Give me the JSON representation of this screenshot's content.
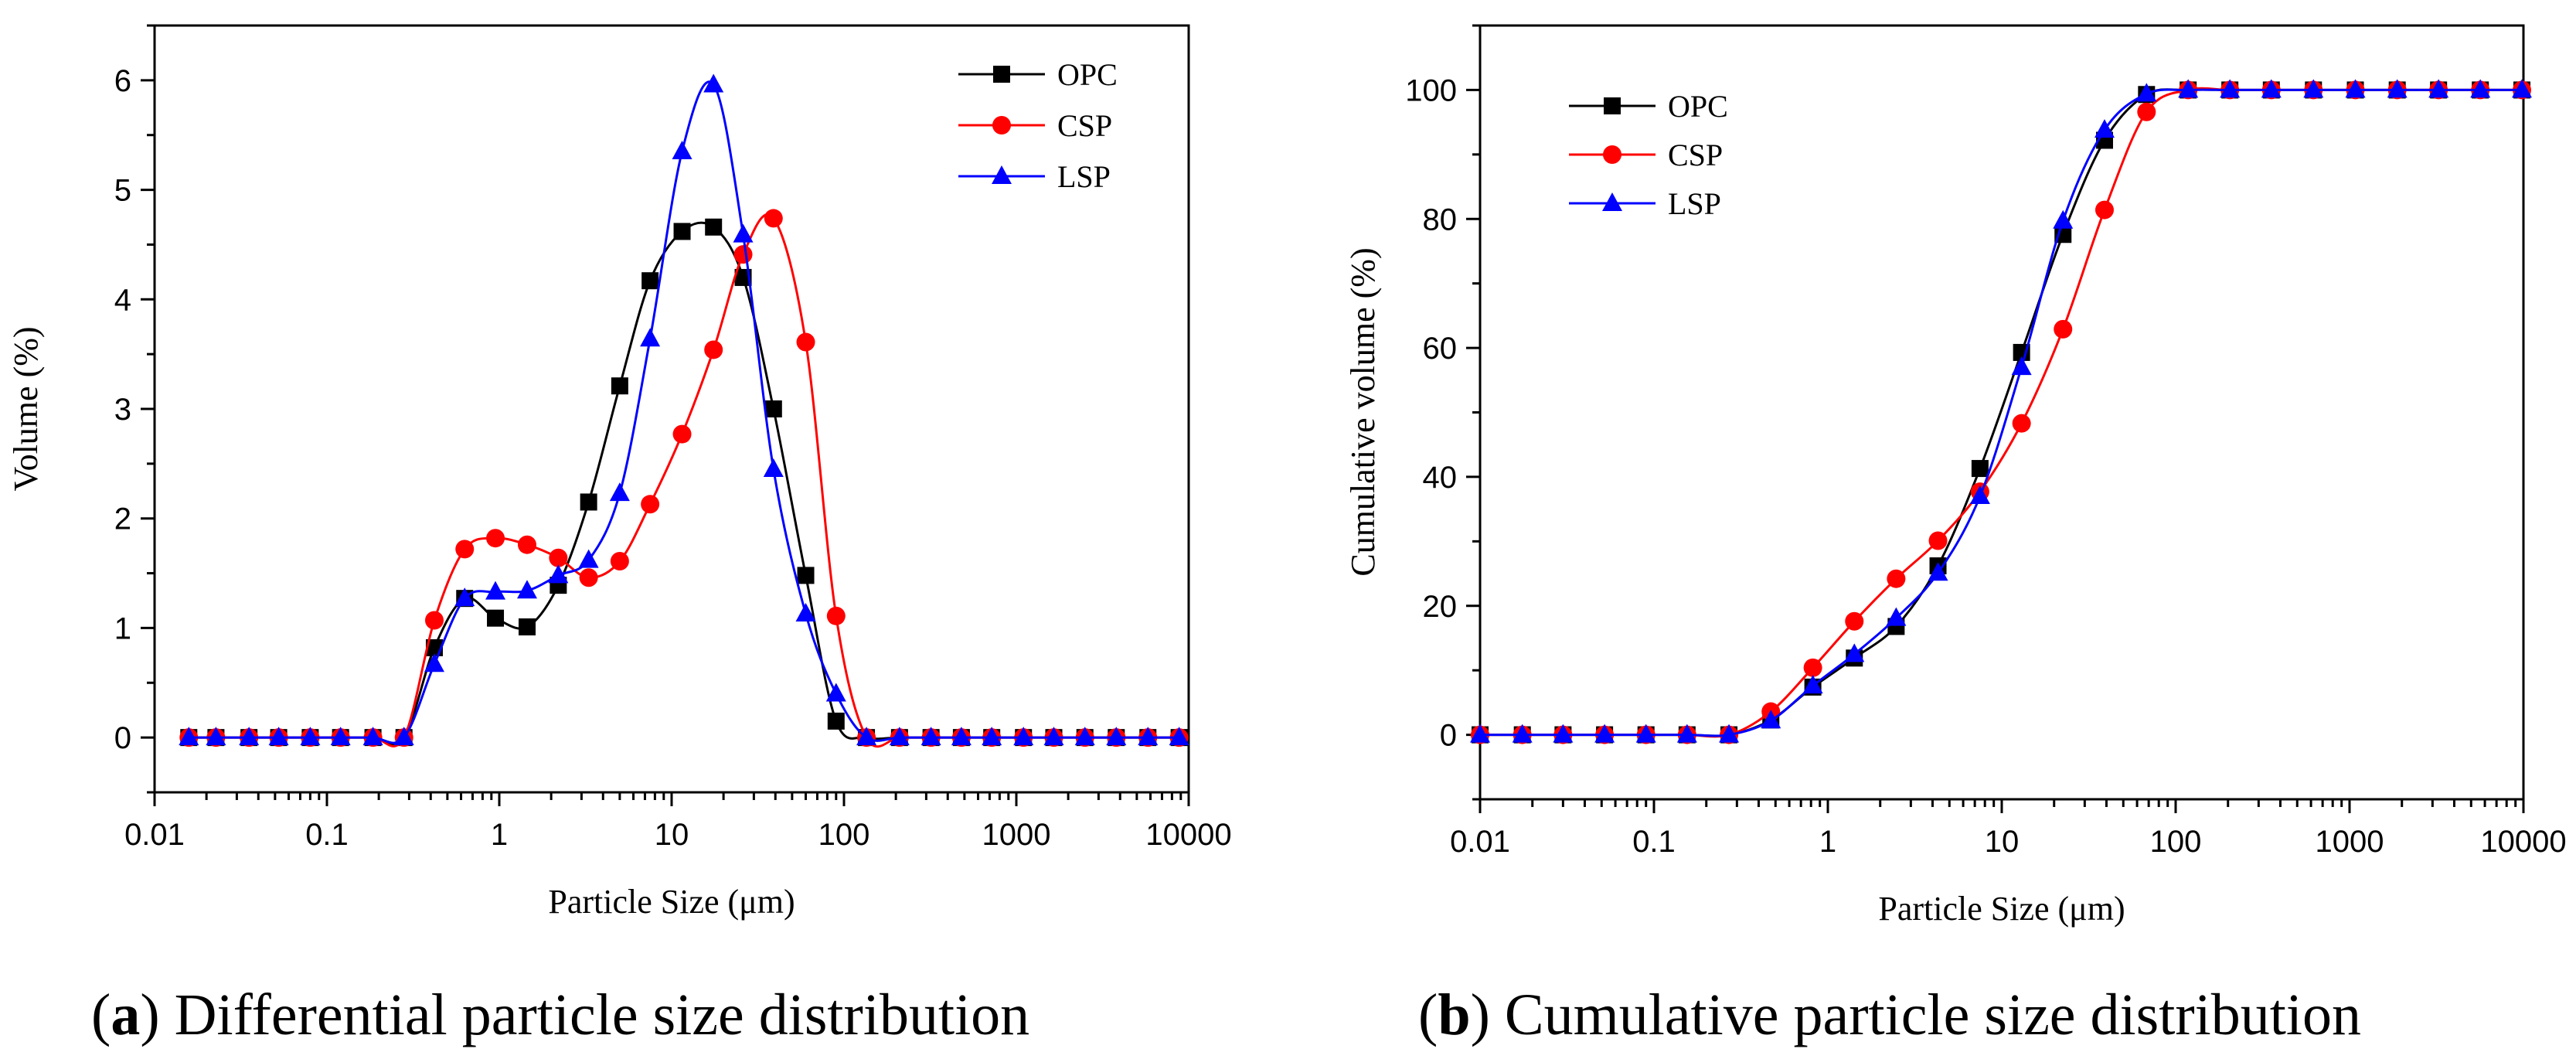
{
  "colors": {
    "OPC": "#000000",
    "CSP": "#ff0000",
    "LSP": "#0000ff"
  },
  "marker_shapes": {
    "OPC": "square",
    "CSP": "circle",
    "LSP": "triangle"
  },
  "chart_data": [
    {
      "type": "line",
      "id": "differential",
      "caption_letter": "a",
      "caption": ") Differential particle size distribution",
      "xlabel": "Particle Size (μm)",
      "ylabel": "Volume (%)",
      "xscale": "log",
      "xlim": [
        0.01,
        10000
      ],
      "ylim": [
        -0.5,
        6.5
      ],
      "xticks": [
        0.01,
        0.1,
        1,
        10,
        100,
        1000,
        10000
      ],
      "xtick_labels": [
        "0.01",
        "0.1",
        "1",
        "10",
        "100",
        "1000",
        "10000"
      ],
      "yticks": [
        0,
        1,
        2,
        3,
        4,
        5,
        6
      ],
      "ytick_labels": [
        "0",
        "1",
        "2",
        "3",
        "4",
        "5",
        "6"
      ],
      "legend_position": "top-right",
      "series": [
        {
          "name": "OPC",
          "x": [
            0.0158,
            0.0227,
            0.0353,
            0.0525,
            0.08,
            0.12,
            0.185,
            0.28,
            0.42,
            0.63,
            0.95,
            1.45,
            2.2,
            3.3,
            5.0,
            7.5,
            11.5,
            17.5,
            26,
            39,
            60,
            90,
            135,
            210,
            320,
            480,
            720,
            1100,
            1650,
            2500,
            3800,
            5800,
            8800
          ],
          "y": [
            0,
            0,
            0,
            0,
            0,
            0,
            0,
            0,
            0.82,
            1.27,
            1.09,
            1.01,
            1.39,
            2.15,
            3.21,
            4.17,
            4.62,
            4.66,
            4.2,
            3.0,
            1.48,
            0.15,
            0,
            0,
            0,
            0,
            0,
            0,
            0,
            0,
            0,
            0,
            0
          ]
        },
        {
          "name": "CSP",
          "x": [
            0.0158,
            0.0227,
            0.0353,
            0.0525,
            0.08,
            0.12,
            0.185,
            0.28,
            0.42,
            0.63,
            0.95,
            1.45,
            2.2,
            3.3,
            5.0,
            7.5,
            11.5,
            17.5,
            26,
            39,
            60,
            90,
            135,
            210,
            320,
            480,
            720,
            1100,
            1650,
            2500,
            3800,
            5800,
            8800
          ],
          "y": [
            0,
            0,
            0,
            0,
            0,
            0,
            0,
            0,
            1.07,
            1.72,
            1.82,
            1.76,
            1.64,
            1.46,
            1.61,
            2.13,
            2.77,
            3.54,
            4.41,
            4.74,
            3.61,
            1.11,
            0,
            0,
            0,
            0,
            0,
            0,
            0,
            0,
            0,
            0,
            0
          ]
        },
        {
          "name": "LSP",
          "x": [
            0.0158,
            0.0227,
            0.0353,
            0.0525,
            0.08,
            0.12,
            0.185,
            0.28,
            0.42,
            0.63,
            0.95,
            1.45,
            2.2,
            3.3,
            5.0,
            7.5,
            11.5,
            17.5,
            26,
            39,
            60,
            90,
            135,
            210,
            320,
            480,
            720,
            1100,
            1650,
            2500,
            3800,
            5800,
            8800
          ],
          "y": [
            0,
            0,
            0,
            0,
            0,
            0,
            0,
            0,
            0.67,
            1.27,
            1.33,
            1.34,
            1.48,
            1.62,
            2.23,
            3.64,
            5.35,
            5.96,
            4.59,
            2.45,
            1.13,
            0.4,
            0,
            0,
            0,
            0,
            0,
            0,
            0,
            0,
            0,
            0,
            0
          ]
        }
      ]
    },
    {
      "type": "line",
      "id": "cumulative",
      "caption_letter": "b",
      "caption": ") Cumulative particle size distribution",
      "xlabel": "Particle Size (μm)",
      "ylabel": "Cumulative volume (%)",
      "xscale": "log",
      "xlim": [
        0.01,
        10000
      ],
      "ylim": [
        -10,
        110
      ],
      "xticks": [
        0.01,
        0.1,
        1,
        10,
        100,
        1000,
        10000
      ],
      "xtick_labels": [
        "0.01",
        "0.1",
        "1",
        "10",
        "100",
        "1000",
        "10000"
      ],
      "yticks": [
        0,
        20,
        40,
        60,
        80,
        100
      ],
      "ytick_labels": [
        "0",
        "20",
        "40",
        "60",
        "80",
        "100"
      ],
      "legend_position": "top-left",
      "series": [
        {
          "name": "OPC",
          "x": [
            0.01,
            0.0175,
            0.03,
            0.052,
            0.09,
            0.155,
            0.27,
            0.47,
            0.82,
            1.42,
            2.47,
            4.3,
            7.5,
            13,
            22.5,
            39,
            68,
            118,
            205,
            355,
            620,
            1080,
            1880,
            3250,
            5650,
            9800
          ],
          "y": [
            0,
            0,
            0,
            0,
            0,
            0,
            0,
            2.3,
            7.4,
            11.9,
            16.8,
            26.2,
            41.3,
            59.3,
            77.6,
            92.2,
            99.3,
            100,
            100,
            100,
            100,
            100,
            100,
            100,
            100,
            100
          ]
        },
        {
          "name": "CSP",
          "x": [
            0.01,
            0.0175,
            0.03,
            0.052,
            0.09,
            0.155,
            0.27,
            0.47,
            0.82,
            1.42,
            2.47,
            4.3,
            7.5,
            13,
            22.5,
            39,
            68,
            118,
            205,
            355,
            620,
            1080,
            1880,
            3250,
            5650,
            9800
          ],
          "y": [
            0,
            0,
            0,
            0,
            0,
            0,
            0,
            3.6,
            10.4,
            17.6,
            24.2,
            30.1,
            37.7,
            48.3,
            62.9,
            81.4,
            96.6,
            100,
            100,
            100,
            100,
            100,
            100,
            100,
            100,
            100
          ]
        },
        {
          "name": "LSP",
          "x": [
            0.01,
            0.0175,
            0.03,
            0.052,
            0.09,
            0.155,
            0.27,
            0.47,
            0.82,
            1.42,
            2.47,
            4.3,
            7.5,
            13,
            22.5,
            39,
            68,
            118,
            205,
            355,
            620,
            1080,
            1880,
            3250,
            5650,
            9800
          ],
          "y": [
            0,
            0,
            0,
            0,
            0,
            0,
            0,
            2.2,
            7.6,
            12.5,
            18.1,
            25.1,
            37.0,
            57.0,
            79.7,
            93.8,
            99.4,
            100,
            100,
            100,
            100,
            100,
            100,
            100,
            100,
            100
          ]
        }
      ]
    }
  ]
}
